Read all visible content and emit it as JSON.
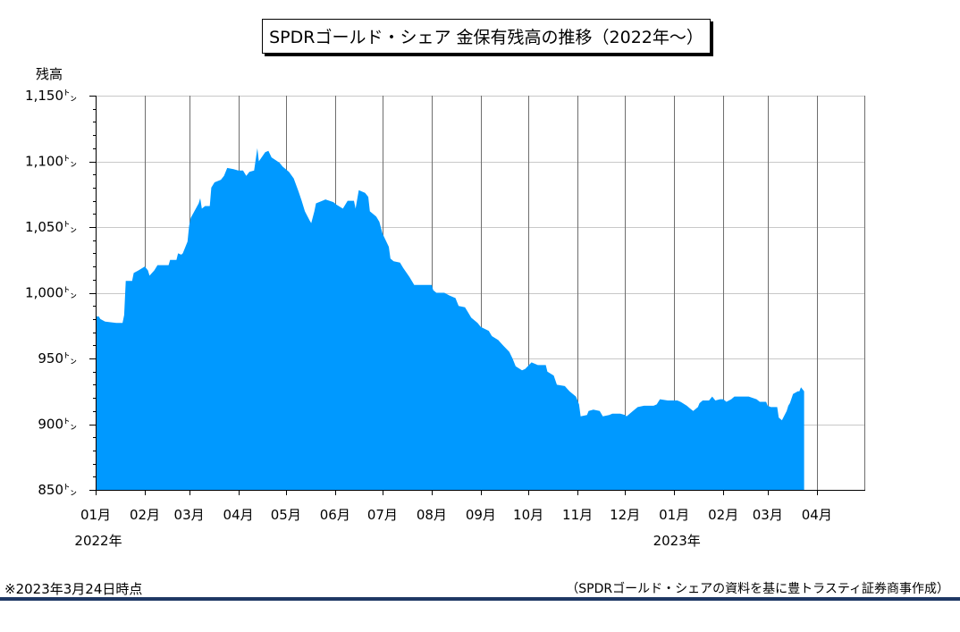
{
  "chart_data": {
    "type": "area",
    "title": "SPDRゴールド・シェア 金保有残高の推移（2022年～）",
    "ylabel": "残高",
    "ylim": [
      850,
      1150
    ],
    "yticks": [
      850,
      900,
      950,
      1000,
      1050,
      1100,
      1150
    ],
    "ytick_labels": [
      "850㌧",
      "900㌧",
      "950㌧",
      "1,000㌧",
      "1,050㌧",
      "1,100㌧",
      "1,150㌧"
    ],
    "xlim": [
      "2022-01-01",
      "2023-05-01"
    ],
    "xticks": [
      {
        "date": "2022-01-01",
        "label": "01月"
      },
      {
        "date": "2022-02-01",
        "label": "02月"
      },
      {
        "date": "2022-03-01",
        "label": "03月"
      },
      {
        "date": "2022-04-01",
        "label": "04月"
      },
      {
        "date": "2022-05-01",
        "label": "05月"
      },
      {
        "date": "2022-06-01",
        "label": "06月"
      },
      {
        "date": "2022-07-01",
        "label": "07月"
      },
      {
        "date": "2022-08-01",
        "label": "08月"
      },
      {
        "date": "2022-09-01",
        "label": "09月"
      },
      {
        "date": "2022-10-01",
        "label": "10月"
      },
      {
        "date": "2022-11-01",
        "label": "11月"
      },
      {
        "date": "2022-12-01",
        "label": "12月"
      },
      {
        "date": "2023-01-01",
        "label": "01月"
      },
      {
        "date": "2023-02-01",
        "label": "02月"
      },
      {
        "date": "2023-03-01",
        "label": "03月"
      },
      {
        "date": "2023-04-01",
        "label": "04月"
      }
    ],
    "year_labels": [
      {
        "date": "2022-01-01",
        "label": "2022年"
      },
      {
        "date": "2023-01-01",
        "label": "2023年"
      }
    ],
    "grid": {
      "x": true,
      "y": true
    },
    "colors": {
      "area": "#0099FF",
      "x_grid": "#6E6E6E",
      "y_grid": "#C8C8C8",
      "axis": "#000000"
    },
    "series": [
      {
        "x": [
          "2022-01-03",
          "2022-01-04",
          "2022-01-07",
          "2022-01-14",
          "2022-01-18",
          "2022-01-19",
          "2022-01-20",
          "2022-01-24",
          "2022-01-25",
          "2022-01-28",
          "2022-02-01",
          "2022-02-03",
          "2022-02-04",
          "2022-02-07",
          "2022-02-09",
          "2022-02-16",
          "2022-02-17",
          "2022-02-21",
          "2022-02-22",
          "2022-02-24",
          "2022-02-25",
          "2022-02-28",
          "2022-03-01",
          "2022-03-02",
          "2022-03-07",
          "2022-03-08",
          "2022-03-09",
          "2022-03-11",
          "2022-03-14",
          "2022-03-15",
          "2022-03-17",
          "2022-03-21",
          "2022-03-23",
          "2022-03-25",
          "2022-03-29",
          "2022-04-01",
          "2022-04-04",
          "2022-04-06",
          "2022-04-08",
          "2022-04-11",
          "2022-04-13",
          "2022-04-14",
          "2022-04-18",
          "2022-04-20",
          "2022-04-22",
          "2022-04-27",
          "2022-04-29",
          "2022-05-03",
          "2022-05-06",
          "2022-05-09",
          "2022-05-11",
          "2022-05-13",
          "2022-05-16",
          "2022-05-17",
          "2022-05-19",
          "2022-05-20",
          "2022-05-24",
          "2022-05-26",
          "2022-05-31",
          "2022-06-02",
          "2022-06-06",
          "2022-06-09",
          "2022-06-13",
          "2022-06-14",
          "2022-06-16",
          "2022-06-20",
          "2022-06-22",
          "2022-06-23",
          "2022-06-27",
          "2022-06-29",
          "2022-07-01",
          "2022-07-05",
          "2022-07-06",
          "2022-07-08",
          "2022-07-12",
          "2022-07-14",
          "2022-07-18",
          "2022-07-21",
          "2022-07-25",
          "2022-07-28",
          "2022-08-01",
          "2022-08-02",
          "2022-08-04",
          "2022-08-09",
          "2022-08-12",
          "2022-08-16",
          "2022-08-18",
          "2022-08-22",
          "2022-08-24",
          "2022-08-26",
          "2022-08-30",
          "2022-09-01",
          "2022-09-06",
          "2022-09-08",
          "2022-09-12",
          "2022-09-15",
          "2022-09-19",
          "2022-09-21",
          "2022-09-23",
          "2022-09-27",
          "2022-09-29",
          "2022-10-03",
          "2022-10-05",
          "2022-10-07",
          "2022-10-12",
          "2022-10-13",
          "2022-10-17",
          "2022-10-19",
          "2022-10-24",
          "2022-10-27",
          "2022-10-31",
          "2022-11-02",
          "2022-11-03",
          "2022-11-07",
          "2022-11-08",
          "2022-11-11",
          "2022-11-15",
          "2022-11-17",
          "2022-11-21",
          "2022-11-23",
          "2022-11-28",
          "2022-12-01",
          "2022-12-02",
          "2022-12-06",
          "2022-12-09",
          "2022-12-13",
          "2022-12-16",
          "2022-12-19",
          "2022-12-21",
          "2022-12-23",
          "2022-12-28",
          "2023-01-03",
          "2023-01-05",
          "2023-01-09",
          "2023-01-11",
          "2023-01-13",
          "2023-01-16",
          "2023-01-17",
          "2023-01-19",
          "2023-01-23",
          "2023-01-25",
          "2023-01-27",
          "2023-01-30",
          "2023-02-01",
          "2023-02-03",
          "2023-02-06",
          "2023-02-08",
          "2023-02-13",
          "2023-02-17",
          "2023-02-22",
          "2023-02-24",
          "2023-02-28",
          "2023-03-01",
          "2023-03-03",
          "2023-03-07",
          "2023-03-08",
          "2023-03-10",
          "2023-03-13",
          "2023-03-14",
          "2023-03-15",
          "2023-03-17",
          "2023-03-20",
          "2023-03-21",
          "2023-03-22",
          "2023-03-24"
        ],
        "values": [
          982,
          980,
          978,
          977,
          977,
          983,
          1009,
          1009,
          1015,
          1017,
          1020,
          1017,
          1013,
          1017,
          1021,
          1021,
          1025,
          1025,
          1030,
          1029,
          1030,
          1039,
          1051,
          1057,
          1068,
          1072,
          1064,
          1066,
          1066,
          1080,
          1084,
          1086,
          1089,
          1095,
          1094,
          1093,
          1093,
          1089,
          1092,
          1093,
          1110,
          1100,
          1107,
          1108,
          1103,
          1099,
          1096,
          1092,
          1087,
          1077,
          1070,
          1062,
          1055,
          1053,
          1062,
          1068,
          1070,
          1071,
          1069,
          1067,
          1064,
          1070,
          1070,
          1064,
          1078,
          1076,
          1073,
          1062,
          1058,
          1054,
          1045,
          1035,
          1026,
          1024,
          1023,
          1019,
          1012,
          1006,
          1006,
          1006,
          1006,
          1002,
          1000,
          1000,
          998,
          996,
          990,
          989,
          985,
          981,
          977,
          974,
          971,
          967,
          964,
          960,
          955,
          950,
          944,
          941,
          942,
          947,
          946,
          945,
          945,
          940,
          937,
          930,
          929,
          925,
          921,
          915,
          906,
          907,
          910,
          911,
          910,
          906,
          907,
          908,
          908,
          907,
          906,
          910,
          913,
          914,
          914,
          914,
          915,
          919,
          918,
          918,
          917,
          914,
          912,
          910,
          913,
          916,
          918,
          918,
          921,
          918,
          919,
          919,
          917,
          919,
          921,
          921,
          921,
          919,
          917,
          917,
          914,
          913,
          913,
          905,
          903,
          910,
          914,
          916,
          923,
          925,
          925,
          928,
          925
        ]
      }
    ]
  },
  "footer": {
    "note": "※2023年3月24日時点",
    "source": "（SPDRゴールド・シェアの資料を基に豊トラスティ証券商事作成）"
  },
  "colors": {
    "bottom_rule": "#1F3864"
  }
}
